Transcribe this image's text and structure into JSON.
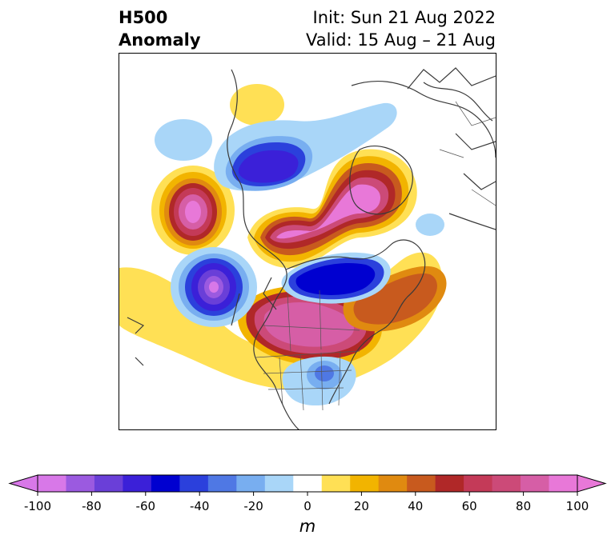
{
  "title": {
    "left_line1": "H500",
    "left_line2": "Anomaly",
    "right_line1": "Init: Sun 21 Aug 2022",
    "right_line2": "Valid: 15 Aug – 21 Aug"
  },
  "colorbar": {
    "unit": "m",
    "min": -100,
    "max": 100,
    "step": 10,
    "tick_labels": [
      "-100",
      "-80",
      "-60",
      "-40",
      "-20",
      "0",
      "20",
      "40",
      "60",
      "80",
      "100"
    ],
    "colors": [
      "#d878e8",
      "#9b5ae0",
      "#6a3fd8",
      "#3b20d8",
      "#0000d0",
      "#2b40dc",
      "#4f78e4",
      "#78aef0",
      "#a9d6f8",
      "#ffffff",
      "#ffe055",
      "#f2b400",
      "#e08a10",
      "#c85a1e",
      "#b02828",
      "#c43a58",
      "#cc4a78",
      "#d65ea6",
      "#e878d8"
    ],
    "extend": "both"
  }
}
